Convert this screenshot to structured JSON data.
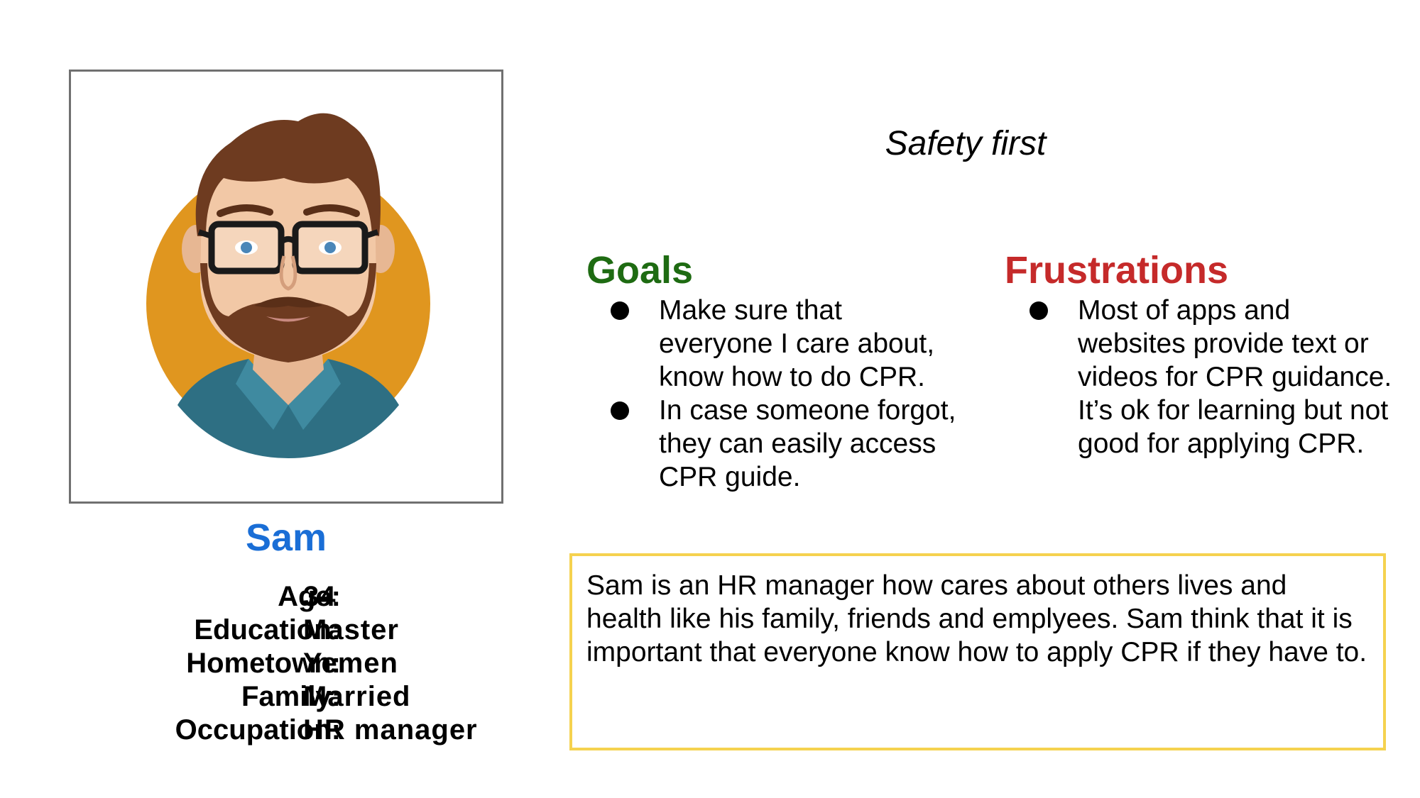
{
  "persona": {
    "name": "Sam",
    "avatar_icon": "bearded-man-avatar-icon",
    "details": [
      {
        "label": "Age:",
        "value": "34"
      },
      {
        "label": "Education:",
        "value": "Master"
      },
      {
        "label": "Hometown:",
        "value": "Yemen"
      },
      {
        "label": "Family:",
        "value": "Married"
      },
      {
        "label": "Occupation:",
        "value": "HR manager"
      }
    ]
  },
  "quote": "Safety first",
  "goals": {
    "title": "Goals",
    "items": [
      "Make sure that everyone I care about, know how to do CPR.",
      "In case someone forgot, they can easily access CPR guide."
    ]
  },
  "frustrations": {
    "title": "Frustrations",
    "items": [
      "Most of apps and websites provide text or videos for CPR guidance. It’s ok for learning but not good for applying CPR."
    ]
  },
  "bio": "Sam is an HR manager how cares about others lives and health like his family, friends and emplyees. Sam think that it is important that everyone know how to apply CPR if they have to.",
  "colors": {
    "name": "#1a6ed6",
    "goals": "#1e6b12",
    "frustrations": "#c52a2a",
    "bio_border": "#f5d24f",
    "avatar_background": "#e0961f"
  }
}
